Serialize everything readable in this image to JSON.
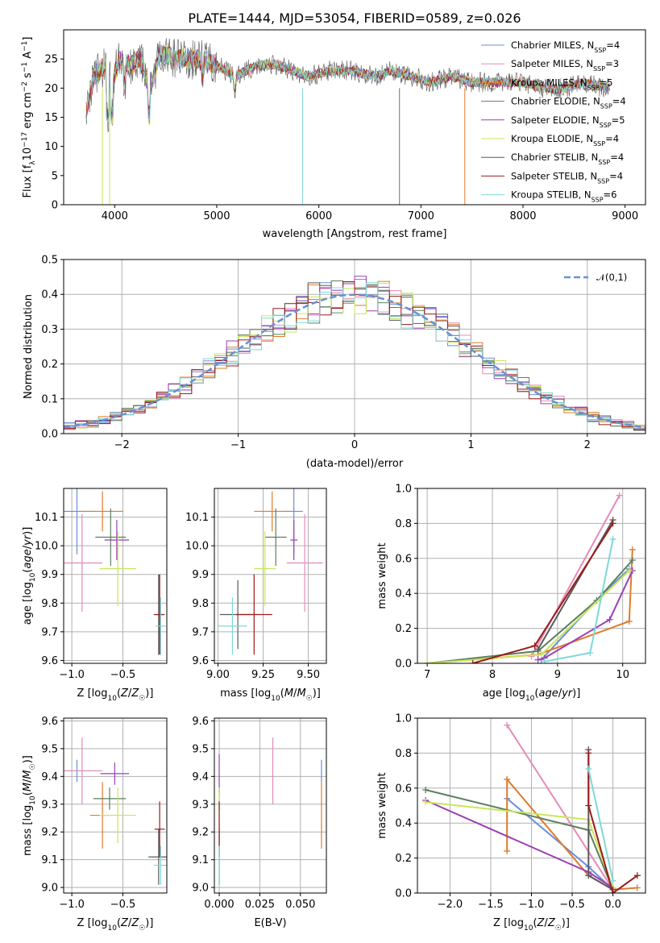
{
  "title": "PLATE=1444, MJD=53054, FIBERID=0589, z=0.026",
  "colors": {
    "grid": "#b0b0b0",
    "models": [
      "#6a8fd6",
      "#e58ab8",
      "#e07b2a",
      "#5c7f5c",
      "#9a3fb5",
      "#c8e65a",
      "#5a5a5a",
      "#9b1b1b",
      "#7dd8d8"
    ]
  },
  "chart_data": [
    {
      "id": "spectrum",
      "type": "line",
      "title": "PLATE=1444, MJD=53054, FIBERID=0589, z=0.026",
      "xlabel": "wavelength [Angstrom, rest frame]",
      "ylabel": "Flux [f_λ 10^-17 erg cm^-2 s^-1 A^-1]",
      "xlim": [
        3500,
        9200
      ],
      "ylim": [
        0,
        30
      ],
      "xticks": [
        4000,
        5000,
        6000,
        7000,
        8000,
        9000
      ],
      "yticks": [
        0,
        5,
        10,
        15,
        20,
        25
      ],
      "grid": false,
      "legend_position": "top-right",
      "legend": [
        "Chabrier MILES, N_SSP=4",
        "Salpeter MILES, N_SSP=3",
        "Kroupa MILES, N_SSP=5",
        "Chabrier ELODIE, N_SSP=4",
        "Salpeter ELODIE, N_SSP=5",
        "Kroupa ELODIE, N_SSP=4",
        "Chabrier STELIB, N_SSP=4",
        "Salpeter STELIB, N_SSP=4",
        "Kroupa STELIB, N_SSP=6"
      ],
      "x": [
        3720,
        3800,
        3900,
        3970,
        4050,
        4150,
        4250,
        4340,
        4450,
        4600,
        4800,
        5000,
        5175,
        5400,
        5600,
        5890,
        6100,
        6300,
        6563,
        6700,
        6900,
        7100,
        7300,
        7500,
        7800,
        8000,
        8200,
        8400,
        8600,
        8800,
        8900
      ],
      "y": [
        16,
        22,
        24,
        21,
        25,
        24,
        25,
        20,
        26,
        25,
        25,
        24,
        22,
        24,
        24,
        22,
        23,
        23,
        22,
        23,
        22,
        21,
        22,
        21,
        21,
        21,
        20,
        20,
        21,
        20,
        20
      ],
      "drop_edges": [
        3880,
        3950,
        5840,
        6790,
        7430
      ]
    },
    {
      "id": "residuals",
      "type": "step-histogram",
      "xlabel": "(data-model)/error",
      "ylabel": "Normed distribution",
      "xlim": [
        -2.5,
        2.5
      ],
      "ylim": [
        0,
        0.5
      ],
      "xticks": [
        -2,
        -1,
        0,
        1,
        2
      ],
      "yticks": [
        0,
        0.1,
        0.2,
        0.3,
        0.4,
        0.5
      ],
      "grid": true,
      "legend_position": "top-right",
      "legend": [
        "𝒩(0,1)"
      ],
      "bin_width": 0.1,
      "bin_start": -2.5,
      "n_bins": 50
    },
    {
      "id": "age-vs-Z",
      "type": "errorbar",
      "xlabel": "Z [log10(Z/Z☉)]",
      "ylabel": "age [log10(age/yr)]",
      "xlim": [
        -1.08,
        -0.07
      ],
      "ylim": [
        9.59,
        10.2
      ],
      "xticks": [
        -1.0,
        -0.5
      ],
      "yticks": [
        9.6,
        9.7,
        9.8,
        9.9,
        10.0,
        10.1
      ],
      "grid": true,
      "points": [
        {
          "model": 0,
          "x": -0.95,
          "xerr": 0.18,
          "y": 10.12,
          "yerr": 0.15
        },
        {
          "model": 1,
          "x": -0.9,
          "xerr": 0.2,
          "y": 9.94,
          "yerr": 0.17
        },
        {
          "model": 2,
          "x": -0.7,
          "xerr": 0.2,
          "y": 10.12,
          "yerr": 0.07
        },
        {
          "model": 3,
          "x": -0.62,
          "xerr": 0.15,
          "y": 10.03,
          "yerr": 0.1
        },
        {
          "model": 4,
          "x": -0.56,
          "xerr": 0.12,
          "y": 10.02,
          "yerr": 0.07
        },
        {
          "model": 5,
          "x": -0.55,
          "xerr": 0.18,
          "y": 9.92,
          "yerr": 0.13
        },
        {
          "model": 6,
          "x": -0.15,
          "xerr": 0.05,
          "y": 9.76,
          "yerr": 0.14
        },
        {
          "model": 7,
          "x": -0.14,
          "xerr": 0.05,
          "y": 9.76,
          "yerr": 0.14
        },
        {
          "model": 8,
          "x": -0.13,
          "xerr": 0.05,
          "y": 9.72,
          "yerr": 0.1
        }
      ]
    },
    {
      "id": "age-vs-mass",
      "type": "errorbar",
      "xlabel": "mass [log10(M/M☉)]",
      "ylabel": "",
      "xlim": [
        8.98,
        9.6
      ],
      "ylim": [
        9.59,
        10.2
      ],
      "xticks": [
        9.0,
        9.25,
        9.5
      ],
      "yticks": [
        9.6,
        9.7,
        9.8,
        9.9,
        10.0,
        10.1
      ],
      "grid": true,
      "points": [
        {
          "model": 0,
          "x": 9.42,
          "xerr": 0.05,
          "y": 10.12,
          "yerr": 0.15
        },
        {
          "model": 1,
          "x": 9.48,
          "xerr": 0.1,
          "y": 9.94,
          "yerr": 0.17
        },
        {
          "model": 2,
          "x": 9.3,
          "xerr": 0.1,
          "y": 10.12,
          "yerr": 0.07
        },
        {
          "model": 3,
          "x": 9.32,
          "xerr": 0.06,
          "y": 10.03,
          "yerr": 0.1
        },
        {
          "model": 4,
          "x": 9.42,
          "xerr": 0.02,
          "y": 10.02,
          "yerr": 0.07
        },
        {
          "model": 5,
          "x": 9.26,
          "xerr": 0.06,
          "y": 9.92,
          "yerr": 0.13
        },
        {
          "model": 6,
          "x": 9.11,
          "xerr": 0.1,
          "y": 9.76,
          "yerr": 0.12
        },
        {
          "model": 7,
          "x": 9.2,
          "xerr": 0.1,
          "y": 9.76,
          "yerr": 0.14
        },
        {
          "model": 8,
          "x": 9.08,
          "xerr": 0.08,
          "y": 9.72,
          "yerr": 0.1
        }
      ]
    },
    {
      "id": "weight-vs-age",
      "type": "line",
      "xlabel": "age [log10(age/yr)]",
      "ylabel": "mass weight",
      "xlim": [
        6.85,
        10.35
      ],
      "ylim": [
        0,
        1.0
      ],
      "xticks": [
        7,
        8,
        9,
        10
      ],
      "yticks": [
        0.0,
        0.2,
        0.4,
        0.6,
        0.8,
        1.0
      ],
      "grid": true,
      "series": [
        {
          "model": 0,
          "x": [
            8.75,
            9.7,
            10.1
          ],
          "y": [
            0.02,
            0.4,
            0.54
          ]
        },
        {
          "model": 1,
          "x": [
            8.6,
            9.95
          ],
          "y": [
            0.04,
            0.96
          ]
        },
        {
          "model": 2,
          "x": [
            7.0,
            8.7,
            10.1,
            10.15
          ],
          "y": [
            0.0,
            0.05,
            0.24,
            0.65
          ]
        },
        {
          "model": 3,
          "x": [
            7.0,
            8.7,
            9.6,
            10.15
          ],
          "y": [
            0.0,
            0.07,
            0.36,
            0.59
          ]
        },
        {
          "model": 4,
          "x": [
            8.7,
            8.8,
            9.8,
            10.15
          ],
          "y": [
            0.02,
            0.03,
            0.25,
            0.53
          ]
        },
        {
          "model": 5,
          "x": [
            7.0,
            8.75,
            10.1
          ],
          "y": [
            0.0,
            0.05,
            0.53
          ]
        },
        {
          "model": 6,
          "x": [
            8.7,
            9.85
          ],
          "y": [
            0.08,
            0.82
          ]
        },
        {
          "model": 7,
          "x": [
            7.7,
            8.65,
            9.85
          ],
          "y": [
            0.0,
            0.1,
            0.8
          ]
        },
        {
          "model": 8,
          "x": [
            8.8,
            9.5,
            9.85
          ],
          "y": [
            0.01,
            0.06,
            0.71
          ]
        }
      ]
    },
    {
      "id": "mass-vs-Z",
      "type": "errorbar",
      "xlabel": "Z [log10(Z/Z☉)]",
      "ylabel": "mass [log10(M/M☉)]",
      "xlim": [
        -1.08,
        -0.07
      ],
      "ylim": [
        8.98,
        9.61
      ],
      "xticks": [
        -1.0,
        -0.5
      ],
      "yticks": [
        9.0,
        9.1,
        9.2,
        9.3,
        9.4,
        9.5,
        9.6
      ],
      "grid": true,
      "points": [
        {
          "model": 0,
          "x": -0.95,
          "xerr": 0.18,
          "y": 9.42,
          "yerr": 0.04
        },
        {
          "model": 1,
          "x": -0.9,
          "xerr": 0.2,
          "y": 9.42,
          "yerr": 0.12
        },
        {
          "model": 2,
          "x": -0.7,
          "xerr": 0.12,
          "y": 9.26,
          "yerr": 0.12
        },
        {
          "model": 3,
          "x": -0.63,
          "xerr": 0.16,
          "y": 9.32,
          "yerr": 0.04
        },
        {
          "model": 4,
          "x": -0.58,
          "xerr": 0.14,
          "y": 9.41,
          "yerr": 0.04
        },
        {
          "model": 5,
          "x": -0.55,
          "xerr": 0.18,
          "y": 9.26,
          "yerr": 0.1
        },
        {
          "model": 6,
          "x": -0.15,
          "xerr": 0.1,
          "y": 9.11,
          "yerr": 0.1
        },
        {
          "model": 7,
          "x": -0.14,
          "xerr": 0.05,
          "y": 9.21,
          "yerr": 0.1
        },
        {
          "model": 8,
          "x": -0.13,
          "xerr": 0.07,
          "y": 9.08,
          "yerr": 0.07
        }
      ]
    },
    {
      "id": "mass-vs-ebv",
      "type": "errorbar",
      "xlabel": "E(B-V)",
      "ylabel": "",
      "xlim": [
        -0.003,
        0.066
      ],
      "ylim": [
        8.98,
        9.61
      ],
      "xticks": [
        0.0,
        0.025,
        0.05
      ],
      "yticks": [
        9.0,
        9.1,
        9.2,
        9.3,
        9.4,
        9.5,
        9.6
      ],
      "grid": true,
      "points": [
        {
          "model": 0,
          "x": 0.063,
          "xerr": 0,
          "y": 9.42,
          "yerr": 0.04
        },
        {
          "model": 1,
          "x": 0.033,
          "xerr": 0,
          "y": 9.42,
          "yerr": 0.12
        },
        {
          "model": 2,
          "x": 0.063,
          "xerr": 0,
          "y": 9.26,
          "yerr": 0.12
        },
        {
          "model": 3,
          "x": 0.0,
          "xerr": 0,
          "y": 9.32,
          "yerr": 0.04
        },
        {
          "model": 4,
          "x": 0.0,
          "xerr": 0,
          "y": 9.41,
          "yerr": 0.07
        },
        {
          "model": 5,
          "x": 0.0,
          "xerr": 0,
          "y": 9.26,
          "yerr": 0.1
        },
        {
          "model": 6,
          "x": 0.0,
          "xerr": 0,
          "y": 9.11,
          "yerr": 0.1
        },
        {
          "model": 7,
          "x": 0.0,
          "xerr": 0,
          "y": 9.21,
          "yerr": 0.1
        },
        {
          "model": 8,
          "x": 0.0,
          "xerr": 0,
          "y": 9.08,
          "yerr": 0.07
        }
      ]
    },
    {
      "id": "weight-vs-Z",
      "type": "line",
      "xlabel": "Z [log10(Z/Z☉)]",
      "ylabel": "mass weight",
      "xlim": [
        -2.4,
        0.4
      ],
      "ylim": [
        0,
        1.0
      ],
      "xticks": [
        -2.0,
        -1.5,
        -1.0,
        -0.5,
        0.0
      ],
      "yticks": [
        0.0,
        0.2,
        0.4,
        0.6,
        0.8,
        1.0
      ],
      "grid": true,
      "series": [
        {
          "model": 0,
          "x": [
            -1.3,
            -0.3,
            0.0
          ],
          "y": [
            0.54,
            0.15,
            0.02
          ]
        },
        {
          "model": 1,
          "x": [
            -1.3,
            0.0
          ],
          "y": [
            0.96,
            0.02
          ]
        },
        {
          "model": 2,
          "x": [
            -1.3,
            -1.3,
            -0.3,
            0.0,
            0.3
          ],
          "y": [
            0.24,
            0.65,
            0.1,
            0.02,
            0.03
          ]
        },
        {
          "model": 3,
          "x": [
            -2.3,
            -0.3,
            0.0
          ],
          "y": [
            0.59,
            0.36,
            0.02
          ]
        },
        {
          "model": 4,
          "x": [
            -2.3,
            -0.3,
            0.0
          ],
          "y": [
            0.53,
            0.12,
            0.03
          ]
        },
        {
          "model": 5,
          "x": [
            -2.3,
            -0.3,
            0.0
          ],
          "y": [
            0.52,
            0.42,
            0.03
          ]
        },
        {
          "model": 6,
          "x": [
            -0.3,
            -0.3,
            0.0
          ],
          "y": [
            0.82,
            0.1,
            0.02
          ]
        },
        {
          "model": 7,
          "x": [
            -0.3,
            -0.3,
            0.0,
            0.3
          ],
          "y": [
            0.8,
            0.5,
            0.0,
            0.1
          ]
        },
        {
          "model": 8,
          "x": [
            -0.3,
            0.0
          ],
          "y": [
            0.71,
            0.07
          ]
        }
      ]
    }
  ]
}
